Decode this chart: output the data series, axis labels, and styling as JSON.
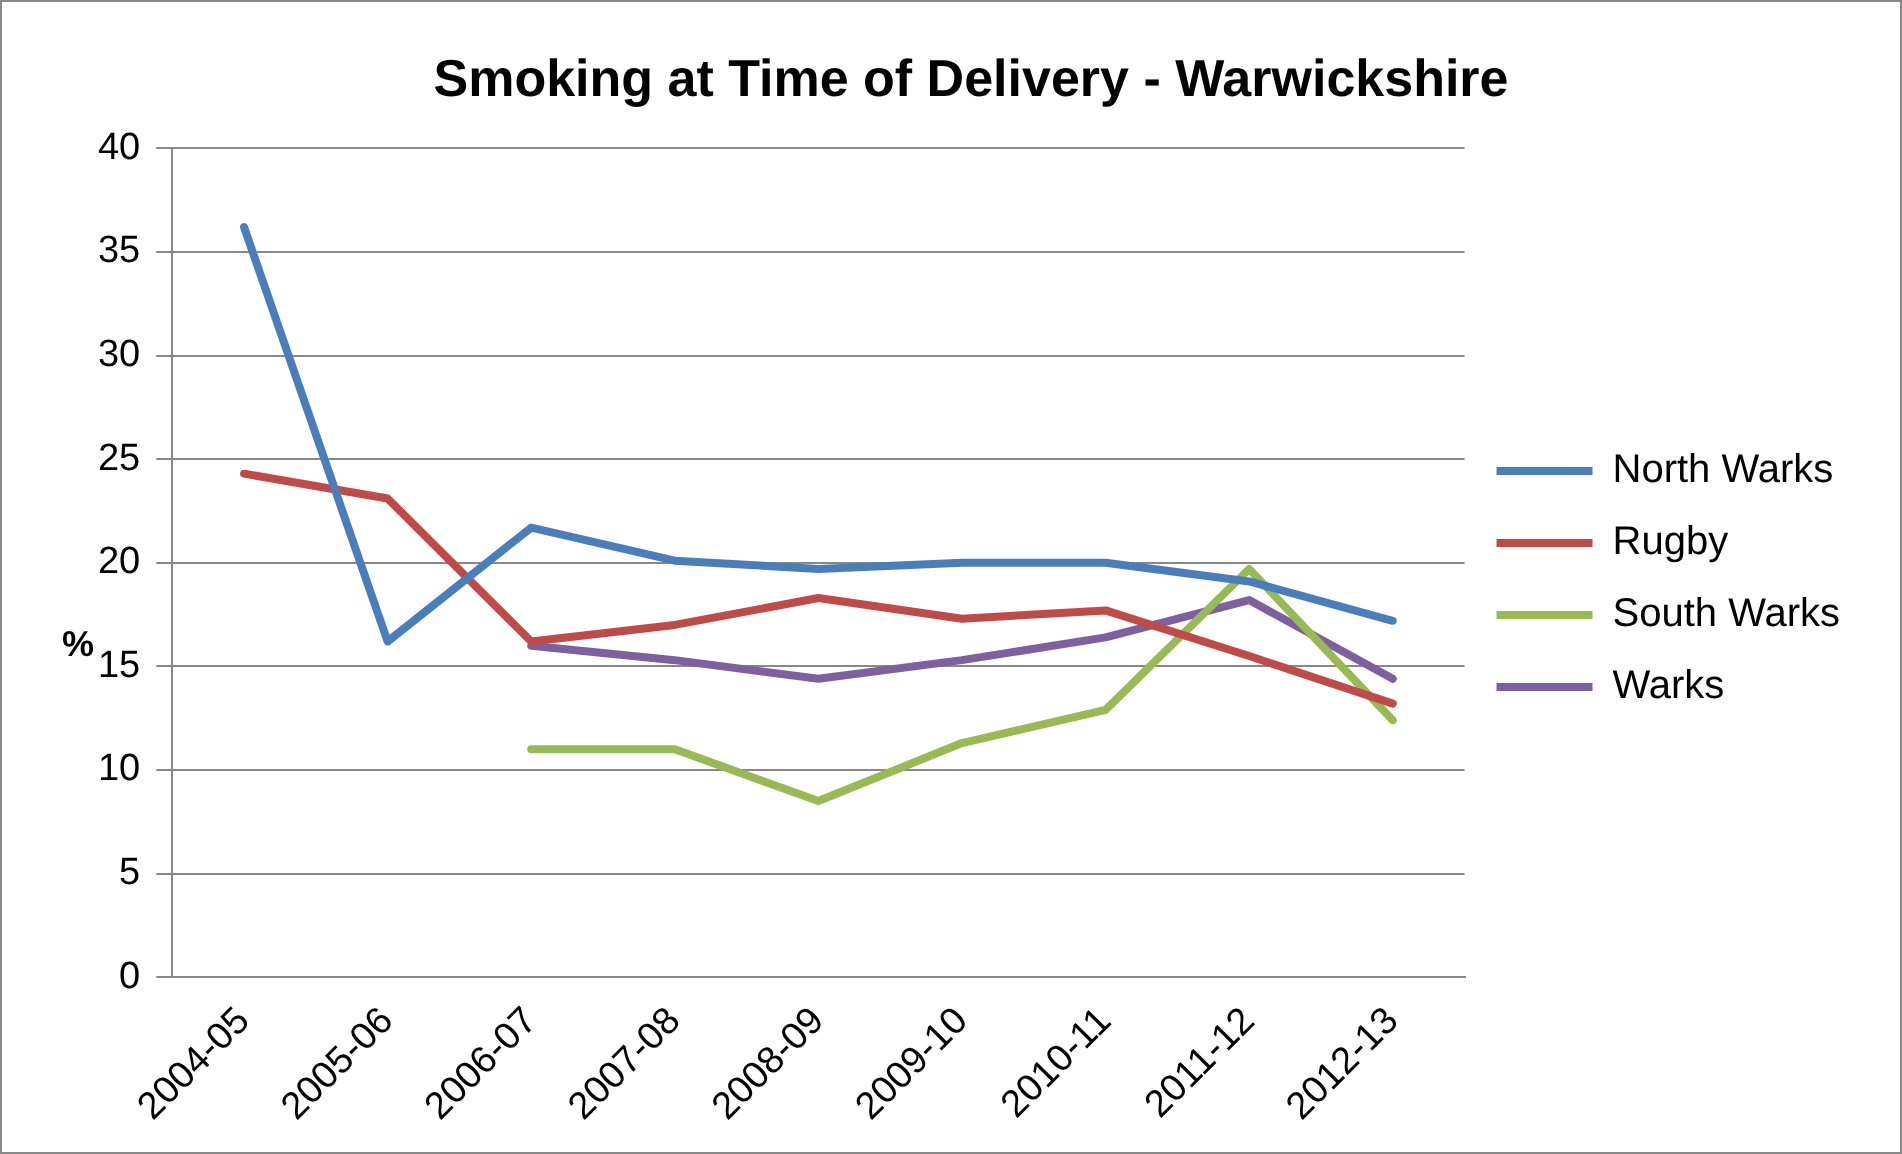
{
  "chart_data": {
    "type": "line",
    "title": "Smoking at Time of Delivery - Warwickshire",
    "ylabel": "%",
    "categories": [
      "2004-05",
      "2005-06",
      "2006-07",
      "2007-08",
      "2008-09",
      "2009-10",
      "2010-11",
      "2011-12",
      "2012-13"
    ],
    "series": [
      {
        "name": "North Warks",
        "color": "#4a7ebb",
        "values": [
          36.2,
          16.2,
          21.7,
          20.1,
          19.7,
          20.0,
          20.0,
          19.1,
          17.2
        ]
      },
      {
        "name": "Rugby",
        "color": "#be4b48",
        "values": [
          24.3,
          23.1,
          16.2,
          17.0,
          18.3,
          17.3,
          17.7,
          15.5,
          13.2
        ]
      },
      {
        "name": "South Warks",
        "color": "#98b954",
        "values": [
          null,
          null,
          11.0,
          11.0,
          8.5,
          11.3,
          12.9,
          19.7,
          12.4
        ]
      },
      {
        "name": "Warks",
        "color": "#7d60a0",
        "values": [
          null,
          null,
          16.0,
          15.3,
          14.4,
          15.3,
          16.4,
          18.2,
          14.4
        ]
      }
    ],
    "ylim": [
      0,
      40
    ],
    "yticks": [
      0,
      5,
      10,
      15,
      20,
      25,
      30,
      35,
      40
    ],
    "grid": "y",
    "legend": "right",
    "marker": "none",
    "line_style": "solid"
  }
}
